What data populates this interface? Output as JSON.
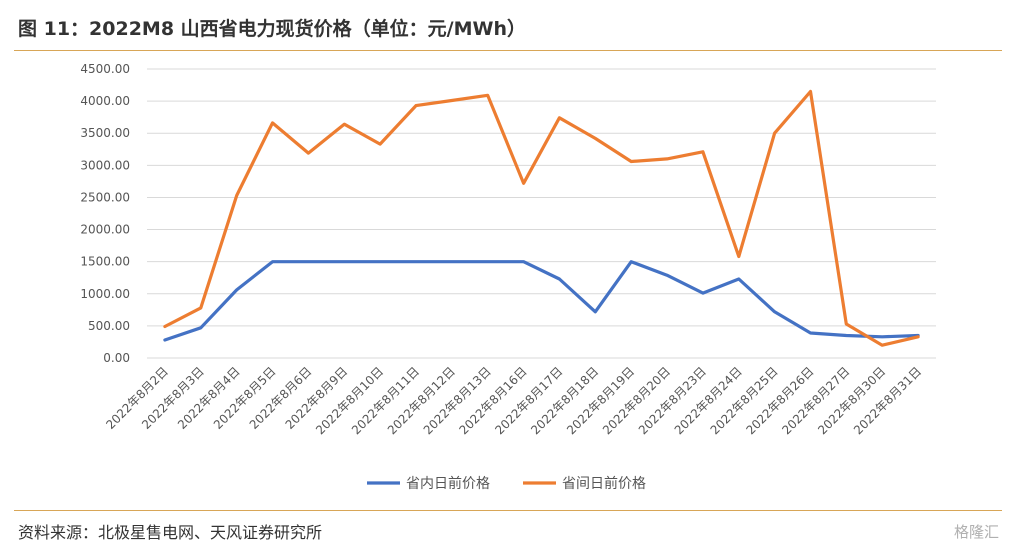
{
  "header": {
    "title": "图 11：2022M8 山西省电力现货价格（单位：元/MWh）"
  },
  "footer": {
    "source": "资料来源：北极星售电网、天风证券研究所",
    "watermark": "格隆汇"
  },
  "colors": {
    "series1": "#4472c4",
    "series2": "#ed7d31",
    "grid": "#d9d9d9",
    "rule": "#d8a657"
  },
  "chart_data": {
    "type": "line",
    "title": "",
    "xlabel": "",
    "ylabel": "",
    "ylim": [
      0,
      4500
    ],
    "yticks": [
      "0.00",
      "500.00",
      "1000.00",
      "1500.00",
      "2000.00",
      "2500.00",
      "3000.00",
      "3500.00",
      "4000.00",
      "4500.00"
    ],
    "grid": true,
    "legend": "bottom",
    "categories": [
      "2022年8月2日",
      "2022年8月3日",
      "2022年8月4日",
      "2022年8月5日",
      "2022年8月6日",
      "2022年8月9日",
      "2022年8月10日",
      "2022年8月11日",
      "2022年8月12日",
      "2022年8月13日",
      "2022年8月16日",
      "2022年8月17日",
      "2022年8月18日",
      "2022年8月19日",
      "2022年8月20日",
      "2022年8月23日",
      "2022年8月24日",
      "2022年8月25日",
      "2022年8月26日",
      "2022年8月27日",
      "2022年8月30日",
      "2022年8月31日"
    ],
    "series": [
      {
        "name": "省内日前价格",
        "values": [
          280,
          470,
          1060,
          1500,
          1500,
          1500,
          1500,
          1500,
          1500,
          1500,
          1500,
          1230,
          720,
          1500,
          1290,
          1010,
          1230,
          720,
          390,
          350,
          330,
          350
        ]
      },
      {
        "name": "省间日前价格",
        "values": [
          490,
          780,
          2530,
          3660,
          3190,
          3640,
          3330,
          3930,
          4010,
          4090,
          2720,
          3740,
          3420,
          3060,
          3100,
          3210,
          1580,
          3500,
          4150,
          530,
          200,
          330
        ]
      }
    ]
  }
}
